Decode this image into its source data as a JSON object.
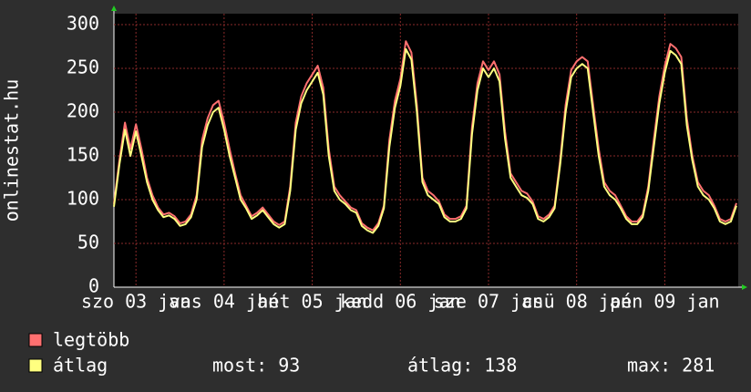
{
  "chart_data": {
    "type": "line",
    "ylabel": "onlinestat.hu",
    "x": [
      0,
      1.5,
      3,
      4.5,
      6,
      7.5,
      9,
      10.5,
      12,
      13.5,
      15,
      16.5,
      18,
      19.5,
      21,
      22.5,
      24,
      25.5,
      27,
      28.5,
      30,
      31.5,
      33,
      34.5,
      36,
      37.5,
      39,
      40.5,
      42,
      43.5,
      45,
      46.5,
      48,
      49.5,
      51,
      52.5,
      54,
      55.5,
      57,
      58.5,
      60,
      61.5,
      63,
      64.5,
      66,
      67.5,
      69,
      70.5,
      72,
      73.5,
      75,
      76.5,
      78,
      79.5,
      81,
      82.5,
      84,
      85.5,
      87,
      88.5,
      90,
      91.5,
      93,
      94.5,
      96,
      97.5,
      99,
      100.5,
      102,
      103.5,
      105,
      106.5,
      108,
      109.5,
      111,
      112.5,
      114,
      115.5,
      117,
      118.5,
      120,
      121.5,
      123,
      124.5,
      126,
      127.5,
      129,
      130.5,
      132,
      133.5,
      135,
      136.5,
      138,
      139.5,
      141,
      142.5,
      144,
      145.5,
      147,
      148.5,
      150,
      151.5,
      153,
      154.5,
      156,
      157.5,
      159,
      160.5,
      162,
      163.5,
      165,
      166.5,
      168,
      169.5
    ],
    "series": [
      {
        "name": "legtöbb",
        "color": "#ff7070",
        "values": [
          95,
          145,
          188,
          158,
          186,
          158,
          125,
          105,
          91,
          83,
          85,
          81,
          73,
          75,
          83,
          105,
          168,
          193,
          208,
          213,
          188,
          158,
          130,
          105,
          93,
          81,
          85,
          91,
          83,
          75,
          71,
          75,
          115,
          188,
          218,
          233,
          243,
          253,
          228,
          158,
          115,
          105,
          98,
          91,
          88,
          73,
          68,
          65,
          73,
          93,
          168,
          213,
          238,
          281,
          268,
          208,
          125,
          110,
          105,
          98,
          83,
          78,
          78,
          81,
          93,
          183,
          233,
          258,
          248,
          258,
          243,
          178,
          130,
          120,
          110,
          107,
          98,
          81,
          78,
          83,
          93,
          145,
          208,
          248,
          258,
          263,
          258,
          208,
          158,
          120,
          110,
          105,
          93,
          81,
          75,
          75,
          83,
          115,
          168,
          218,
          253,
          278,
          273,
          263,
          193,
          150,
          120,
          110,
          105,
          93,
          78,
          75,
          78,
          96
        ]
      },
      {
        "name": "átlag",
        "color": "#ffff80",
        "values": [
          92,
          140,
          180,
          150,
          178,
          150,
          120,
          100,
          88,
          80,
          82,
          78,
          70,
          72,
          80,
          100,
          160,
          185,
          200,
          205,
          180,
          150,
          125,
          100,
          90,
          78,
          82,
          88,
          80,
          72,
          68,
          72,
          110,
          180,
          210,
          225,
          235,
          245,
          220,
          150,
          110,
          100,
          95,
          88,
          85,
          70,
          65,
          62,
          70,
          90,
          160,
          205,
          230,
          272,
          260,
          200,
          120,
          105,
          100,
          95,
          80,
          75,
          75,
          78,
          90,
          175,
          225,
          250,
          240,
          250,
          235,
          170,
          125,
          115,
          105,
          102,
          95,
          78,
          75,
          80,
          90,
          140,
          200,
          240,
          250,
          255,
          250,
          200,
          150,
          115,
          105,
          100,
          90,
          78,
          72,
          72,
          80,
          110,
          160,
          210,
          245,
          270,
          265,
          255,
          185,
          145,
          115,
          105,
          100,
          90,
          75,
          72,
          75,
          93
        ]
      }
    ],
    "stats": [
      {
        "label": "most:",
        "value": 93
      },
      {
        "label": "átlag:",
        "value": 138
      },
      {
        "label": "max:",
        "value": 281
      }
    ],
    "xlim": [
      0,
      170
    ],
    "xticks": [
      {
        "value": 6,
        "label": "szo 03 jan"
      },
      {
        "value": 30,
        "label": "vas 04 jan"
      },
      {
        "value": 54,
        "label": "hét 05 jan"
      },
      {
        "value": 78,
        "label": "kedd 06 jan"
      },
      {
        "value": 102,
        "label": "sze 07 jan"
      },
      {
        "value": 126,
        "label": "csü 08 jan"
      },
      {
        "value": 150,
        "label": "pén 09 jan"
      }
    ],
    "ylim": [
      0,
      300
    ],
    "yticks": [
      0,
      50,
      100,
      150,
      200,
      250,
      300
    ],
    "grid": true
  }
}
